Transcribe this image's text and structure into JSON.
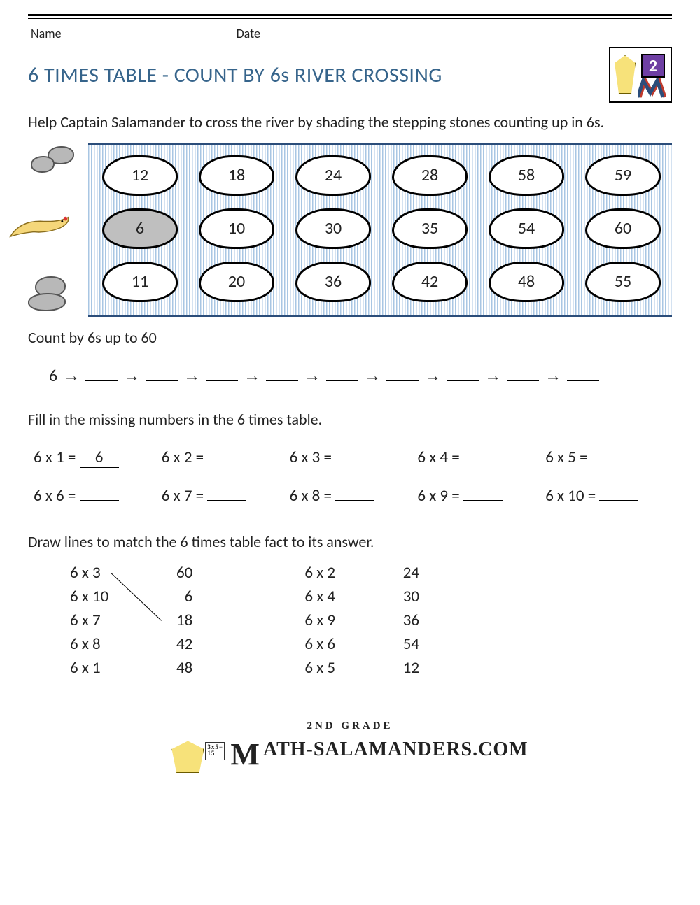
{
  "colors": {
    "title": "#36648b",
    "river_stripe_a": "#a8c6e3",
    "river_stripe_b": "#ffffff",
    "river_border": "#2b4d7a",
    "rock_fill": "#b8b8b8",
    "text": "#222222",
    "logo_purple": "#6e3fa3",
    "salamander": "#f7e27a"
  },
  "header": {
    "name_label": "Name",
    "date_label": "Date",
    "title": "6 TIMES TABLE - COUNT BY 6s RIVER CROSSING",
    "logo_number": "2"
  },
  "instructions": "Help Captain Salamander to cross the river by shading the stepping stones counting up in 6s.",
  "river": {
    "rows": [
      [
        {
          "n": "12",
          "shaded": false
        },
        {
          "n": "18",
          "shaded": false
        },
        {
          "n": "24",
          "shaded": false
        },
        {
          "n": "28",
          "shaded": false
        },
        {
          "n": "58",
          "shaded": false
        },
        {
          "n": "59",
          "shaded": false
        }
      ],
      [
        {
          "n": "6",
          "shaded": true
        },
        {
          "n": "10",
          "shaded": false
        },
        {
          "n": "30",
          "shaded": false
        },
        {
          "n": "35",
          "shaded": false
        },
        {
          "n": "54",
          "shaded": false
        },
        {
          "n": "60",
          "shaded": false
        }
      ],
      [
        {
          "n": "11",
          "shaded": false
        },
        {
          "n": "20",
          "shaded": false
        },
        {
          "n": "36",
          "shaded": false
        },
        {
          "n": "42",
          "shaded": false
        },
        {
          "n": "48",
          "shaded": false
        },
        {
          "n": "55",
          "shaded": false
        }
      ]
    ]
  },
  "count_section": {
    "heading": "Count by 6s up to 60",
    "start": "6",
    "arrow": "→",
    "blanks": 9
  },
  "fill_section": {
    "heading": "Fill in the missing numbers in the 6 times table.",
    "items": [
      {
        "q": "6 x 1 =",
        "a": "6"
      },
      {
        "q": "6 x 2 =",
        "a": ""
      },
      {
        "q": "6 x 3 =",
        "a": ""
      },
      {
        "q": "6 x 4 =",
        "a": ""
      },
      {
        "q": "6 x 5 =",
        "a": ""
      },
      {
        "q": "6 x 6 =",
        "a": ""
      },
      {
        "q": "6 x 7 =",
        "a": ""
      },
      {
        "q": "6 x 8 =",
        "a": ""
      },
      {
        "q": "6 x 9 =",
        "a": ""
      },
      {
        "q": "6 x 10 =",
        "a": ""
      }
    ]
  },
  "match_section": {
    "heading": "Draw lines to match the 6 times table fact to its answer.",
    "left1": [
      "6 x 3",
      "6 x 10",
      "6 x 7",
      "6 x 8",
      "6 x 1"
    ],
    "right1": [
      "60",
      "6",
      "18",
      "42",
      "48"
    ],
    "left2": [
      "6 x 2",
      "6 x 4",
      "6 x 9",
      "6 x 6",
      "6 x 5"
    ],
    "right2": [
      "24",
      "30",
      "36",
      "54",
      "12"
    ],
    "example_line": {
      "from_row": 0,
      "to_row": 2
    }
  },
  "footer": {
    "grade": "2ND GRADE",
    "site": "ATH-SALAMANDERS.COM",
    "card_text": "3x5=\n15"
  }
}
